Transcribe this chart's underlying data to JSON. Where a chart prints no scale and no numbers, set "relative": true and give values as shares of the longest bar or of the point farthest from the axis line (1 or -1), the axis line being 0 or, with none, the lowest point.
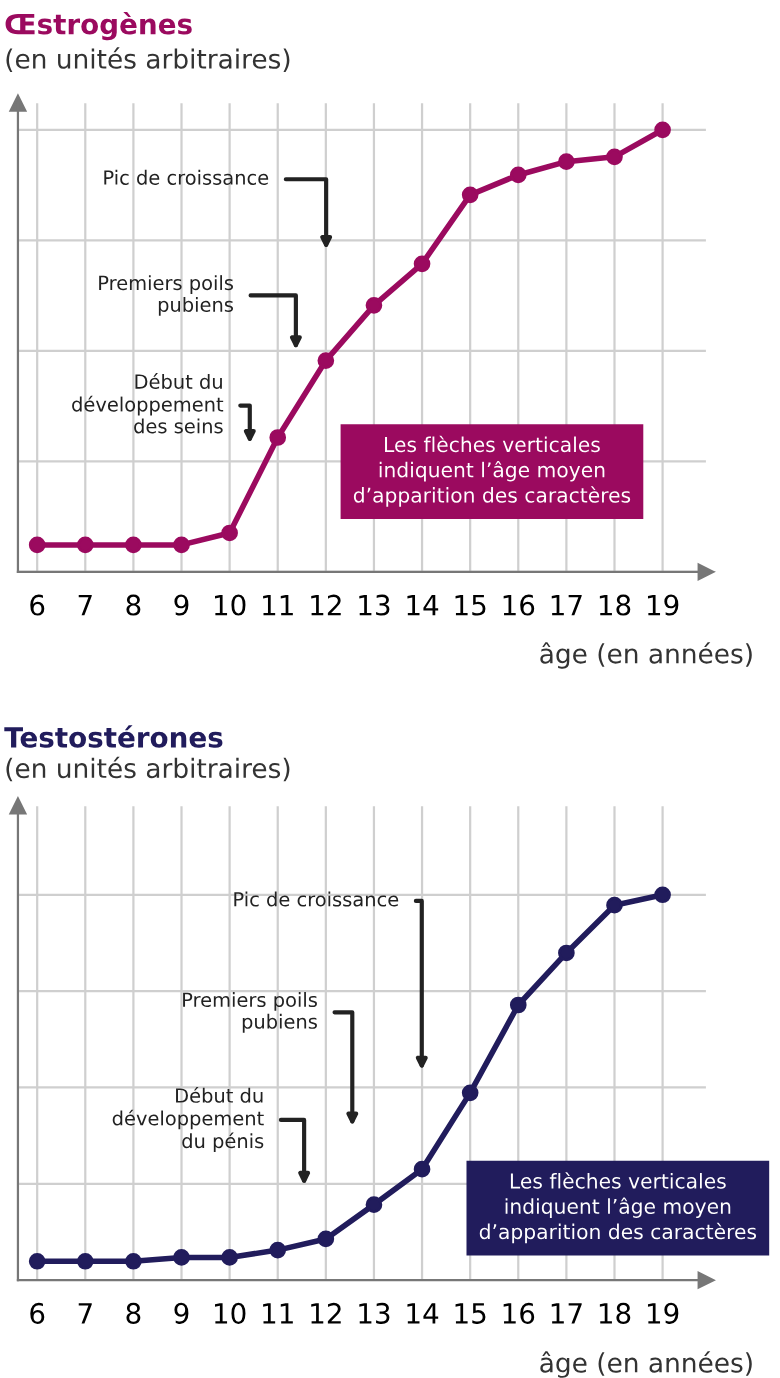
{
  "chart_data": [
    {
      "type": "line",
      "title": "Œstrogènes",
      "subtitle": "(en unités arbitraires)",
      "xlabel": "âge (en années)",
      "relative": true,
      "marker": "circle",
      "grid": true,
      "x": [
        6,
        7,
        8,
        9,
        10,
        11,
        12,
        13,
        14,
        15,
        16,
        17,
        18,
        19
      ],
      "xlim": [
        5.6,
        19.9
      ],
      "xticks": [
        6,
        7,
        8,
        9,
        10,
        11,
        12,
        13,
        14,
        15,
        16,
        17,
        18,
        19
      ],
      "series": [
        {
          "color": "#9b0a5f",
          "values": [
            0.061,
            0.061,
            0.061,
            0.061,
            0.088,
            0.304,
            0.478,
            0.603,
            0.697,
            0.853,
            0.898,
            0.928,
            0.939,
            1
          ]
        }
      ],
      "annotations": [
        "Pic de croissance",
        "Premiers poils\npubiens",
        "Début du\ndéveloppement\ndes seins",
        "Les flèches verticales\nindiquent l’âge moyen\nd’apparition des caractères"
      ]
    },
    {
      "type": "line",
      "title": "Testostérones",
      "subtitle": "(en unités arbitraires)",
      "xlabel": "âge (en années)",
      "relative": true,
      "marker": "circle",
      "grid": true,
      "x": [
        6,
        7,
        8,
        9,
        10,
        11,
        12,
        13,
        14,
        15,
        16,
        17,
        18,
        19
      ],
      "xlim": [
        5.6,
        19.9
      ],
      "xticks": [
        6,
        7,
        8,
        9,
        10,
        11,
        12,
        13,
        14,
        15,
        16,
        17,
        18,
        19
      ],
      "series": [
        {
          "color": "#211c5c",
          "values": [
            0.049,
            0.049,
            0.049,
            0.059,
            0.059,
            0.078,
            0.107,
            0.196,
            0.288,
            0.486,
            0.714,
            0.849,
            0.973,
            1
          ]
        }
      ],
      "annotations": [
        "Pic de croissance",
        "Premiers poils\npubiens",
        "Début du\ndéveloppement\ndu pénis",
        "Les flèches verticales\nindiquent l’âge moyen\nd’apparition des caractères"
      ]
    }
  ]
}
